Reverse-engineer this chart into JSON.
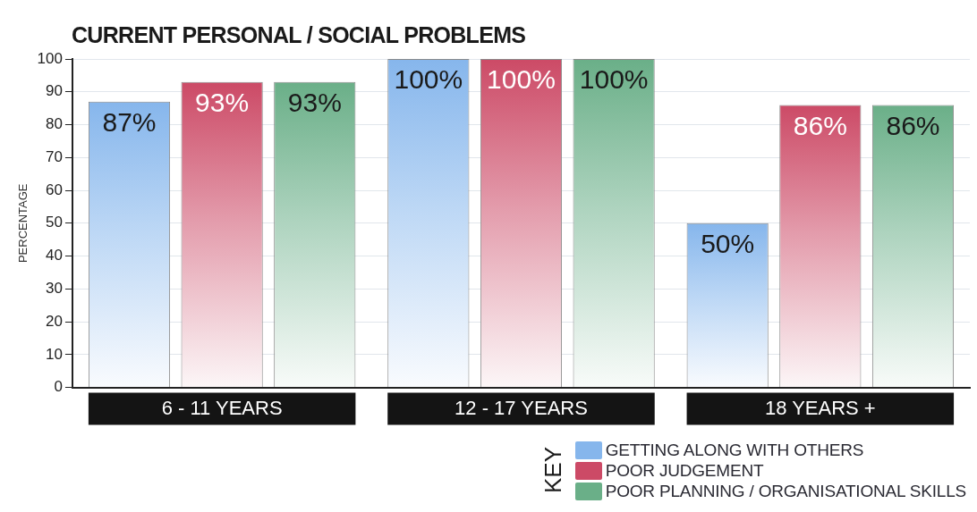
{
  "chart_data": {
    "type": "bar",
    "title": "CURRENT PERSONAL / SOCIAL PROBLEMS",
    "ylabel": "PERCENTAGE",
    "legend_title": "KEY",
    "categories": [
      "6 - 11 YEARS",
      "12 - 17 YEARS",
      "18 YEARS +"
    ],
    "series": [
      {
        "name": "GETTING ALONG WITH OTHERS",
        "color": "#86b6ec",
        "values": [
          87,
          100,
          50
        ],
        "value_labels": [
          "87%",
          "100%",
          "50%"
        ]
      },
      {
        "name": "POOR JUDGEMENT",
        "color": "#cc4a66",
        "values": [
          93,
          100,
          86
        ],
        "value_labels": [
          "93%",
          "100%",
          "86%"
        ]
      },
      {
        "name": "POOR PLANNING / ORGANISATIONAL SKILLS",
        "color": "#6aaf88",
        "values": [
          93,
          100,
          86
        ],
        "value_labels": [
          "93%",
          "100%",
          "86%"
        ]
      }
    ],
    "ylim": [
      0,
      100
    ],
    "yticks": [
      0,
      10,
      20,
      30,
      40,
      50,
      60,
      70,
      80,
      90,
      100
    ],
    "grid": "y",
    "legend": "bottom right"
  }
}
